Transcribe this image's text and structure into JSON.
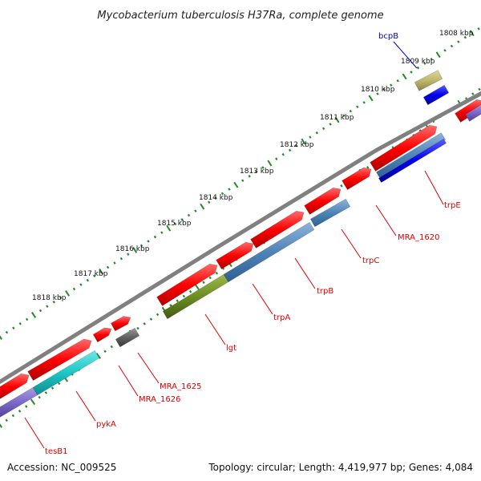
{
  "title": "Mycobacterium tuberculosis H37Ra, complete genome",
  "footer": {
    "accession": "Accession: NC_009525",
    "summary": "Topology: circular; Length: 4,419,977 bp; Genes: 4,084"
  },
  "tick_labels": [
    "1808 kbp",
    "1809 kbp",
    "1810 kbp",
    "1811 kbp",
    "1812 kbp",
    "1813 kbp",
    "1814 kbp",
    "1815 kbp",
    "1816 kbp",
    "1817 kbp",
    "1818 kbp"
  ],
  "gene_labels": [
    {
      "id": "bcpB",
      "text": "bcpB",
      "color": "#0000dd"
    },
    {
      "id": "trpE",
      "text": "trpE",
      "color": "#dd0000"
    },
    {
      "id": "MRA_1620",
      "text": "MRA_1620",
      "color": "#dd0000"
    },
    {
      "id": "trpC",
      "text": "trpC",
      "color": "#dd0000"
    },
    {
      "id": "trpB",
      "text": "trpB",
      "color": "#dd0000"
    },
    {
      "id": "trpA",
      "text": "trpA",
      "color": "#dd0000"
    },
    {
      "id": "lgt",
      "text": "lgt",
      "color": "#dd0000"
    },
    {
      "id": "MRA_1625",
      "text": "MRA_1625",
      "color": "#dd0000"
    },
    {
      "id": "MRA_1626",
      "text": "MRA_1626",
      "color": "#dd0000"
    },
    {
      "id": "pykA",
      "text": "pykA",
      "color": "#dd0000"
    },
    {
      "id": "tesB1",
      "text": "tesB1",
      "color": "#dd0000"
    }
  ],
  "colors": {
    "backbone": "#808080",
    "ruler_dots": "#228b22",
    "cds_forward": "#ff0000",
    "blast_steelblue": "#4d84b8",
    "blast_olive": "#6b8e23",
    "blast_cyan": "#1cc6c6",
    "blast_slateblue": "#7b68c8",
    "blast_blue": "#0000ee",
    "blast_khaki": "#bdb76b",
    "blast_gray": "#606060"
  }
}
